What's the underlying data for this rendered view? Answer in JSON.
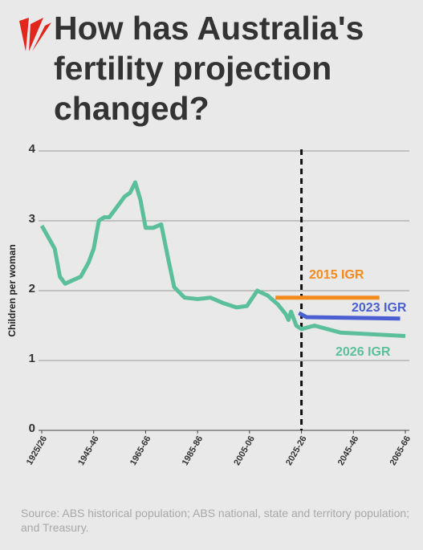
{
  "chart_data": {
    "type": "line",
    "title": "How has Australia's fertility projection changed?",
    "y_label": "Children per woman",
    "source": "Source: ABS historical population; ABS national, state and territory population; and Treasury.",
    "xlim": [
      1925,
      2065
    ],
    "xticks": [
      {
        "value": 1925,
        "label": "1925/26"
      },
      {
        "value": 1945,
        "label": "1945-46"
      },
      {
        "value": 1965,
        "label": "1965-66"
      },
      {
        "value": 1985,
        "label": "1985-86"
      },
      {
        "value": 2005,
        "label": "2005-06"
      },
      {
        "value": 2025,
        "label": "2025-26"
      },
      {
        "value": 2045,
        "label": "2045-46"
      },
      {
        "value": 2065,
        "label": "2065-66"
      }
    ],
    "ylim": [
      0,
      4
    ],
    "yticks": [
      0,
      1,
      2,
      3,
      4
    ],
    "grid": true,
    "vline": 2025,
    "series": [
      {
        "name": "2015 IGR",
        "color": "#f28a1e",
        "x": [
          2015,
          2055
        ],
        "values": [
          1.9,
          1.9
        ]
      },
      {
        "name": "2023 IGR",
        "color": "#4a5fd0",
        "x": [
          2024,
          2027,
          2063
        ],
        "values": [
          1.68,
          1.62,
          1.6
        ]
      },
      {
        "name": "2026 IGR",
        "color": "#5cbf9b",
        "x": [
          1925,
          1927,
          1930,
          1932,
          1934,
          1937,
          1940,
          1943,
          1945,
          1947,
          1949,
          1951,
          1954,
          1957,
          1959,
          1961,
          1963,
          1965,
          1968,
          1971,
          1974,
          1976,
          1980,
          1985,
          1990,
          1995,
          2000,
          2004,
          2008,
          2012,
          2016,
          2019,
          2020,
          2021,
          2022,
          2023,
          2025,
          2030,
          2040,
          2050,
          2065
        ],
        "values": [
          2.93,
          2.8,
          2.6,
          2.2,
          2.1,
          2.15,
          2.2,
          2.4,
          2.6,
          3.0,
          3.05,
          3.05,
          3.2,
          3.35,
          3.4,
          3.55,
          3.3,
          2.9,
          2.9,
          2.95,
          2.4,
          2.05,
          1.9,
          1.88,
          1.9,
          1.82,
          1.76,
          1.78,
          2.0,
          1.93,
          1.8,
          1.66,
          1.58,
          1.7,
          1.6,
          1.5,
          1.45,
          1.5,
          1.4,
          1.38,
          1.35
        ]
      }
    ]
  }
}
